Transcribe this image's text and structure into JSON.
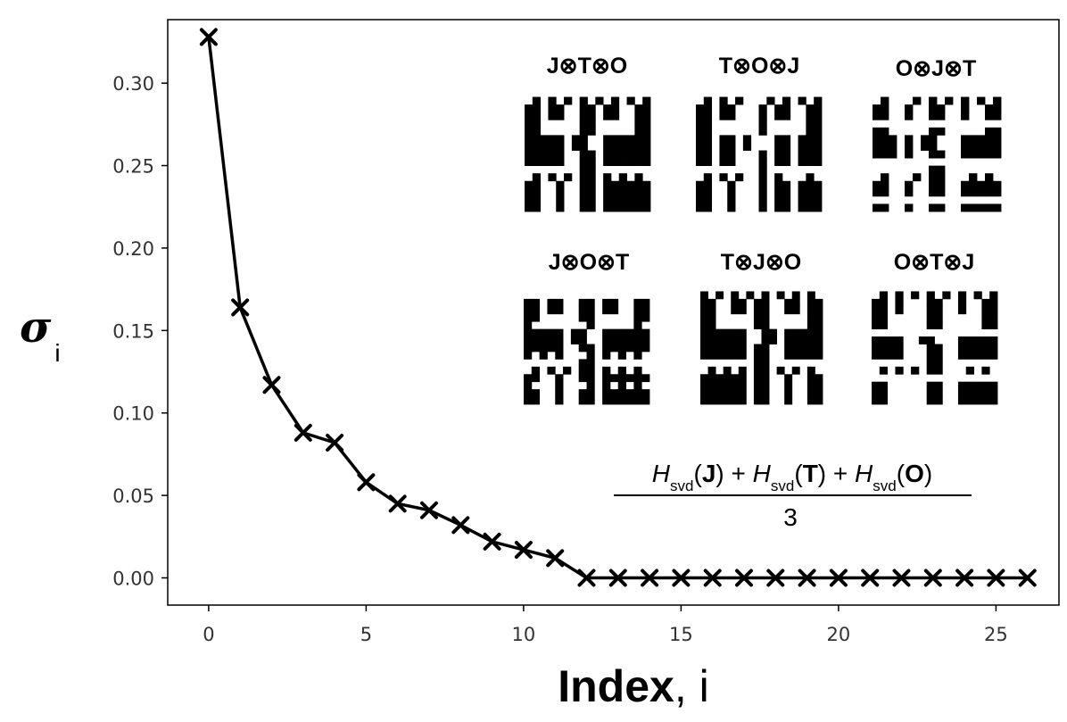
{
  "chart_data": {
    "type": "line",
    "xlabel_main": "Index",
    "xlabel_rest": ", i",
    "ylabel_symbol": "σ",
    "ylabel_sub": "i",
    "xlim": [
      -1.3,
      27
    ],
    "ylim": [
      -0.0165,
      0.3385
    ],
    "xticks": [
      0,
      5,
      10,
      15,
      20,
      25
    ],
    "xtick_labels": [
      "0",
      "5",
      "10",
      "15",
      "20",
      "25"
    ],
    "yticks": [
      0.0,
      0.05,
      0.1,
      0.15,
      0.2,
      0.25,
      0.3
    ],
    "ytick_labels": [
      "0.00",
      "0.05",
      "0.10",
      "0.15",
      "0.20",
      "0.25",
      "0.30"
    ],
    "grid": false,
    "marker": "x",
    "series": [
      {
        "color": "#000000",
        "x": [
          0,
          1,
          2,
          3,
          4,
          5,
          6,
          7,
          8,
          9,
          10,
          11,
          12,
          13,
          14,
          15,
          16,
          17,
          18,
          19,
          20,
          21,
          22,
          23,
          24,
          25,
          26
        ],
        "y": [
          0.328,
          0.164,
          0.117,
          0.088,
          0.082,
          0.058,
          0.045,
          0.041,
          0.032,
          0.022,
          0.017,
          0.012,
          0.0,
          0.0,
          0.0,
          0.0,
          0.0,
          0.0,
          0.0,
          0.0,
          0.0,
          0.0,
          0.0,
          0.0,
          0.0,
          0.0,
          0.0
        ]
      }
    ],
    "insets": [
      {
        "title": "J⊗T⊗O"
      },
      {
        "title": "T⊗O⊗J"
      },
      {
        "title": "O⊗J⊗T"
      },
      {
        "title": "J⊗O⊗T"
      },
      {
        "title": "T⊗J⊗O"
      },
      {
        "title": "O⊗T⊗J"
      }
    ],
    "formula": {
      "H": "H",
      "sub": "svd",
      "J": "J",
      "T": "T",
      "O": "O",
      "plus": " + ",
      "lp": "(",
      "rp": ")",
      "denominator": "3"
    }
  }
}
